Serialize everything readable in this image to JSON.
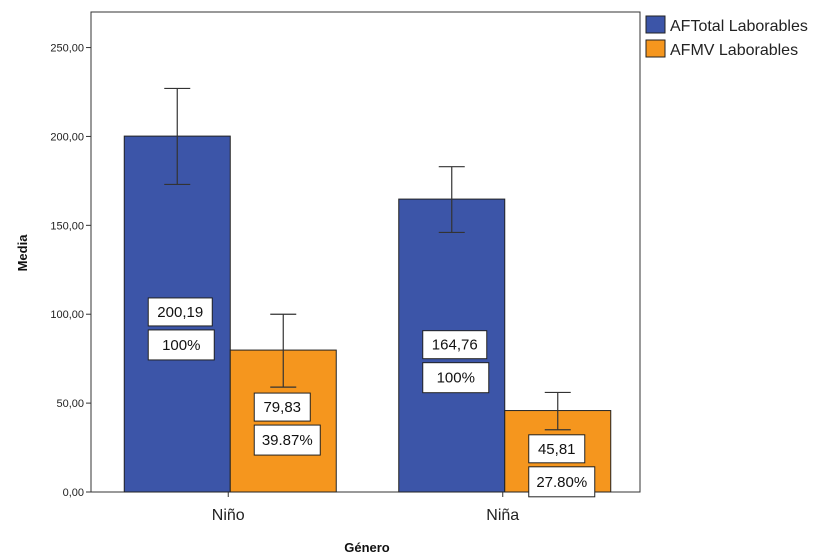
{
  "chart_data": {
    "type": "bar",
    "xlabel": "Género",
    "ylabel": "Media",
    "categories": [
      "Niño",
      "Niña"
    ],
    "ylim": [
      0,
      270
    ],
    "yticks": [
      0,
      50,
      100,
      150,
      200,
      250
    ],
    "ytick_labels": [
      "0,00",
      "50,00",
      "100,00",
      "150,00",
      "200,00",
      "250,00"
    ],
    "grid": false,
    "legend_position": "top-right, outside plot",
    "series": [
      {
        "name": "AFTotal Laborables",
        "color": "#3c55a8",
        "values": [
          200.19,
          164.76
        ],
        "error_low": [
          173,
          146
        ],
        "error_high": [
          227,
          183
        ],
        "value_labels": [
          "200,19",
          "164,76"
        ],
        "percent_labels": [
          "100%",
          "100%"
        ]
      },
      {
        "name": "AFMV Laborables",
        "color": "#f5961e",
        "values": [
          79.83,
          45.81
        ],
        "error_low": [
          59,
          35
        ],
        "error_high": [
          100,
          56
        ],
        "value_labels": [
          "79,83",
          "45,81"
        ],
        "percent_labels": [
          "39.87%",
          "27.80%"
        ]
      }
    ]
  }
}
